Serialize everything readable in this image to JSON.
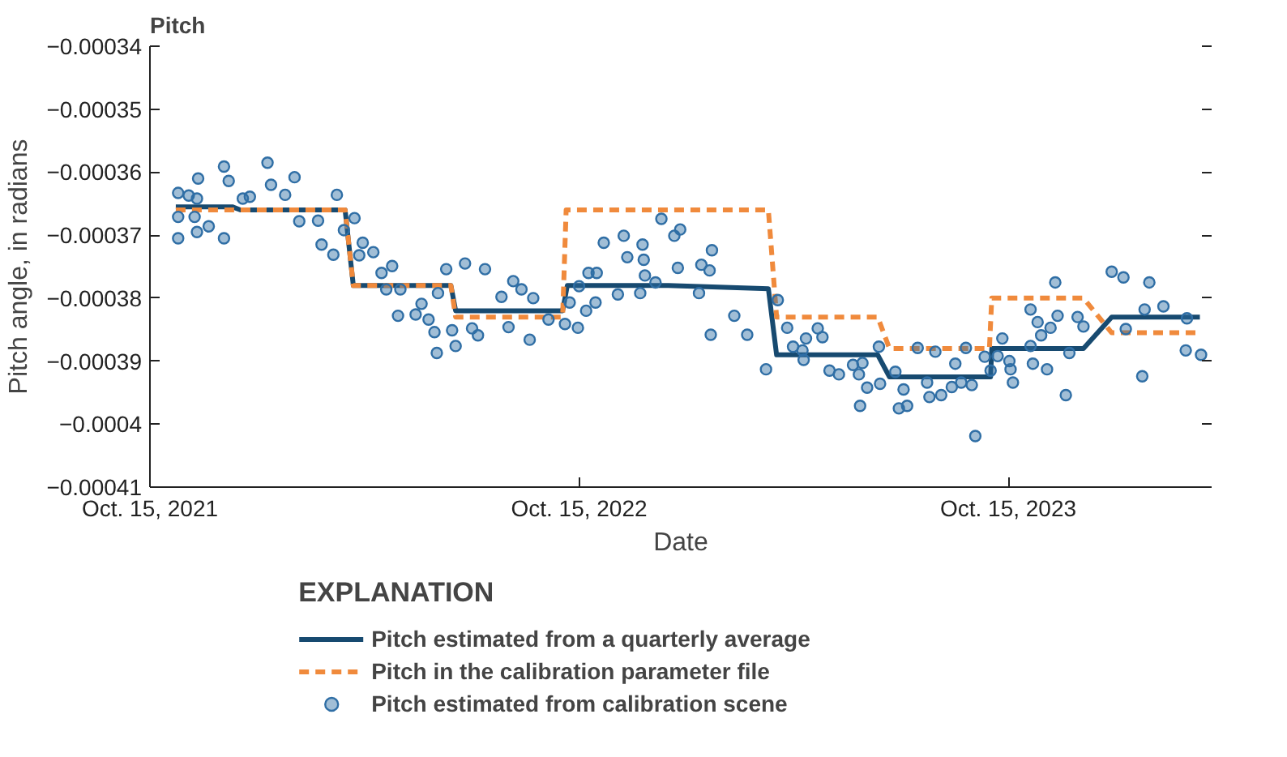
{
  "chart_data": {
    "type": "line",
    "title": "Pitch",
    "xlabel": "Date",
    "ylabel": "Pitch angle, in radians",
    "legend_title": "EXPLANATION",
    "legend": "bottom",
    "xlim": [
      "2021-10-15",
      "2024-04-05"
    ],
    "xticks": [
      {
        "value": "2021-10-15",
        "label": "Oct. 15, 2021"
      },
      {
        "value": "2022-10-15",
        "label": "Oct. 15, 2022"
      },
      {
        "value": "2023-10-15",
        "label": "Oct. 15, 2023"
      }
    ],
    "ylim": [
      -0.00041,
      -0.00034
    ],
    "yticks": [
      {
        "value": -0.00041,
        "label": "−0.00041"
      },
      {
        "value": -0.0004,
        "label": "−0.0004"
      },
      {
        "value": -0.00039,
        "label": "−0.00039"
      },
      {
        "value": -0.00038,
        "label": "−0.00038"
      },
      {
        "value": -0.00037,
        "label": "−0.00037"
      },
      {
        "value": -0.00036,
        "label": "−0.00036"
      },
      {
        "value": -0.00035,
        "label": "−0.00035"
      },
      {
        "value": -0.00034,
        "label": "−0.00034"
      }
    ],
    "series": [
      {
        "name": "Pitch estimated from a quarterly average",
        "color": "#174a70",
        "line_style": "solid",
        "x": [
          "2021-11-06",
          "2021-12-24",
          "2021-12-31",
          "2022-03-30",
          "2022-04-06",
          "2022-06-28",
          "2022-07-02",
          "2022-10-01",
          "2022-10-05",
          "2022-12-30",
          "2023-03-25",
          "2023-04-01",
          "2023-06-26",
          "2023-07-06",
          "2023-09-30",
          "2023-10-01",
          "2023-12-18",
          "2024-01-11",
          "2024-03-26"
        ],
        "values": [
          -0.0003655,
          -0.0003655,
          -0.000366,
          -0.000366,
          -0.000378,
          -0.000378,
          -0.000382,
          -0.000382,
          -0.000378,
          -0.000378,
          -0.0003785,
          -0.000389,
          -0.000389,
          -0.0003925,
          -0.0003925,
          -0.000388,
          -0.000388,
          -0.000383,
          -0.000383
        ]
      },
      {
        "name": "Pitch in the calibration parameter file",
        "color": "#f08a3c",
        "line_style": "dashed",
        "x": [
          "2021-11-06",
          "2022-03-30",
          "2022-04-06",
          "2022-06-28",
          "2022-07-02",
          "2022-10-01",
          "2022-10-04",
          "2023-03-25",
          "2023-04-01",
          "2023-06-26",
          "2023-07-06",
          "2023-09-29",
          "2023-10-01",
          "2023-12-18",
          "2024-01-11",
          "2024-03-26"
        ],
        "values": [
          -0.000366,
          -0.000366,
          -0.000378,
          -0.000378,
          -0.000383,
          -0.000383,
          -0.000366,
          -0.000366,
          -0.000383,
          -0.000383,
          -0.000388,
          -0.000388,
          -0.00038,
          -0.00038,
          -0.0003855,
          -0.0003855
        ]
      },
      {
        "type": "scatter",
        "name": "Pitch estimated from calibration scene",
        "color": "#2f6ea5",
        "marker": "circle",
        "x": [
          "2021-11-08",
          "2021-11-17",
          "2021-11-24",
          "2021-11-08",
          "2021-11-22",
          "2021-11-08",
          "2021-11-24",
          "2021-11-25",
          "2021-12-04",
          "2021-12-17",
          "2021-12-21",
          "2021-12-17",
          "2022-01-02",
          "2022-01-08",
          "2022-01-23",
          "2022-01-26",
          "2022-02-15",
          "2022-02-07",
          "2022-02-19",
          "2022-03-07",
          "2022-03-10",
          "2022-03-23",
          "2022-03-20",
          "2022-03-29",
          "2022-04-07",
          "2022-04-14",
          "2022-04-11",
          "2022-04-23",
          "2022-04-30",
          "2022-05-09",
          "2022-05-04",
          "2022-05-16",
          "2022-05-14",
          "2022-05-29",
          "2022-06-03",
          "2022-06-09",
          "2022-06-14",
          "2022-06-16",
          "2022-06-17",
          "2022-06-24",
          "2022-06-29",
          "2022-07-02",
          "2022-07-10",
          "2022-07-16",
          "2022-07-21",
          "2022-07-27",
          "2022-08-10",
          "2022-08-16",
          "2022-08-20",
          "2022-08-27",
          "2022-09-03",
          "2022-09-06",
          "2022-09-19",
          "2022-10-03",
          "2022-10-14",
          "2022-10-21",
          "2022-10-07",
          "2022-10-15",
          "2022-10-23",
          "2022-10-30",
          "2022-10-29",
          "2022-11-05",
          "2022-11-17",
          "2022-11-22",
          "2022-11-25",
          "2022-12-08",
          "2022-12-09",
          "2022-12-10",
          "2022-12-06",
          "2022-12-19",
          "2022-12-24",
          "2023-01-04",
          "2023-01-09",
          "2023-01-07",
          "2023-01-25",
          "2023-01-27",
          "2023-02-05",
          "2023-02-04",
          "2023-02-03",
          "2023-02-24",
          "2023-03-07",
          "2023-03-23",
          "2023-04-02",
          "2023-04-10",
          "2023-04-15",
          "2023-04-23",
          "2023-04-26",
          "2023-04-24",
          "2023-05-06",
          "2023-05-10",
          "2023-05-16",
          "2023-05-24",
          "2023-06-05",
          "2023-06-10",
          "2023-06-13",
          "2023-06-17",
          "2023-06-11",
          "2023-06-27",
          "2023-06-28",
          "2023-07-11",
          "2023-07-14",
          "2023-07-18",
          "2023-07-21",
          "2023-07-30",
          "2023-08-07",
          "2023-08-09",
          "2023-08-14",
          "2023-08-19",
          "2023-08-28",
          "2023-08-31",
          "2023-09-05",
          "2023-09-09",
          "2023-09-14",
          "2023-09-17",
          "2023-09-25",
          "2023-09-30",
          "2023-10-10",
          "2023-10-06",
          "2023-10-16",
          "2023-10-19",
          "2023-10-17",
          "2023-11-03",
          "2023-11-03",
          "2023-11-05",
          "2023-11-09",
          "2023-11-12",
          "2023-11-17",
          "2023-11-20",
          "2023-11-24",
          "2023-11-26",
          "2023-12-03",
          "2023-12-06",
          "2023-12-13",
          "2023-12-18",
          "2024-01-11",
          "2024-01-21",
          "2024-01-23",
          "2024-02-06",
          "2024-02-08",
          "2024-02-12",
          "2024-02-24",
          "2024-03-15",
          "2024-03-14",
          "2024-03-27"
        ],
        "values": [
          -0.0003633,
          -0.0003637,
          -0.0003642,
          -0.0003671,
          -0.0003671,
          -0.0003705,
          -0.0003695,
          -0.000361,
          -0.0003686,
          -0.0003591,
          -0.0003614,
          -0.0003705,
          -0.0003642,
          -0.0003639,
          -0.0003585,
          -0.000362,
          -0.0003608,
          -0.0003636,
          -0.0003678,
          -0.0003677,
          -0.0003715,
          -0.0003636,
          -0.0003731,
          -0.0003692,
          -0.0003673,
          -0.0003712,
          -0.0003732,
          -0.0003727,
          -0.000376,
          -0.0003749,
          -0.0003786,
          -0.0003786,
          -0.0003828,
          -0.0003826,
          -0.0003809,
          -0.0003834,
          -0.0003854,
          -0.0003887,
          -0.0003792,
          -0.0003754,
          -0.0003851,
          -0.0003876,
          -0.0003745,
          -0.0003848,
          -0.0003859,
          -0.0003754,
          -0.0003798,
          -0.0003846,
          -0.0003773,
          -0.0003786,
          -0.0003866,
          -0.00038,
          -0.0003834,
          -0.0003841,
          -0.0003847,
          -0.000382,
          -0.0003807,
          -0.0003781,
          -0.000376,
          -0.000376,
          -0.0003807,
          -0.0003712,
          -0.0003794,
          -0.0003701,
          -0.0003735,
          -0.0003715,
          -0.0003739,
          -0.0003764,
          -0.0003792,
          -0.0003775,
          -0.0003674,
          -0.0003701,
          -0.0003691,
          -0.0003752,
          -0.0003792,
          -0.0003747,
          -0.0003724,
          -0.0003858,
          -0.0003756,
          -0.0003828,
          -0.0003858,
          -0.0003913,
          -0.0003803,
          -0.0003847,
          -0.0003877,
          -0.0003883,
          -0.0003864,
          -0.0003898,
          -0.0003848,
          -0.0003862,
          -0.0003915,
          -0.0003921,
          -0.0003906,
          -0.0003921,
          -0.0003903,
          -0.0003942,
          -0.0003971,
          -0.0003877,
          -0.0003936,
          -0.0003917,
          -0.0003975,
          -0.0003945,
          -0.0003971,
          -0.0003879,
          -0.0003934,
          -0.0003957,
          -0.0003885,
          -0.0003954,
          -0.0003941,
          -0.0003904,
          -0.0003934,
          -0.0003879,
          -0.0003938,
          -0.0004019,
          -0.0003893,
          -0.0003915,
          -0.0003864,
          -0.0003892,
          -0.00039,
          -0.0003934,
          -0.0003913,
          -0.0003818,
          -0.0003876,
          -0.0003904,
          -0.0003838,
          -0.0003859,
          -0.0003913,
          -0.0003847,
          -0.0003775,
          -0.0003828,
          -0.0003954,
          -0.0003887,
          -0.000383,
          -0.0003845,
          -0.0003758,
          -0.0003767,
          -0.0003849,
          -0.0003924,
          -0.0003818,
          -0.0003775,
          -0.0003813,
          -0.0003832,
          -0.0003883,
          -0.000389
        ]
      }
    ]
  }
}
